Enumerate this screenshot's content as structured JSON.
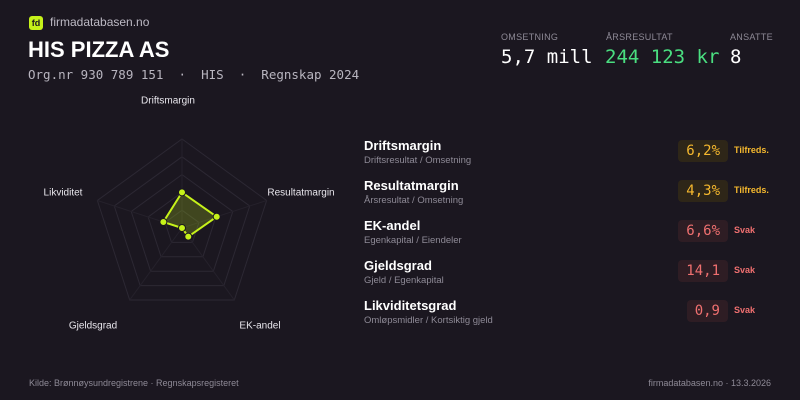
{
  "header": {
    "logo_text": "fd",
    "brand": "firmadatabasen.no",
    "company": "HIS PIZZA AS",
    "org_line": "Org.nr 930 789 151  ·  HIS  ·  Regnskap 2024"
  },
  "stats": [
    {
      "label": "OMSETNING",
      "value": "5,7 mill",
      "color": "#ffffff"
    },
    {
      "label": "ÅRSRESULTAT",
      "value": "244 123 kr",
      "color": "#4ade80"
    },
    {
      "label": "ANSATTE",
      "value": "8",
      "color": "#ffffff"
    }
  ],
  "chart_data": {
    "type": "radar",
    "axes": [
      "Driftsmargin",
      "Resultatmargin",
      "EK-andel",
      "Gjeldsgrad",
      "Likviditet"
    ],
    "values": [
      0.4,
      0.41,
      0.12,
      0,
      0.22
    ],
    "range": [
      0,
      1
    ],
    "rings": 5,
    "color": "#c6f21a"
  },
  "metrics": [
    {
      "name": "Driftsmargin",
      "formula": "Driftsresultat / Omsetning",
      "value": "6,2%",
      "status": "Tilfreds.",
      "level": "ok"
    },
    {
      "name": "Resultatmargin",
      "formula": "Årsresultat / Omsetning",
      "value": "4,3%",
      "status": "Tilfreds.",
      "level": "ok"
    },
    {
      "name": "EK-andel",
      "formula": "Egenkapital / Eiendeler",
      "value": "6,6%",
      "status": "Svak",
      "level": "weak"
    },
    {
      "name": "Gjeldsgrad",
      "formula": "Gjeld / Egenkapital",
      "value": "14,1",
      "status": "Svak",
      "level": "weak"
    },
    {
      "name": "Likviditetsgrad",
      "formula": "Omløpsmidler / Kortsiktig gjeld",
      "value": "0,9",
      "status": "Svak",
      "level": "weak"
    }
  ],
  "colors": {
    "ok": "#f5b82e",
    "ok_bg": "#2e2618",
    "weak": "#f07070",
    "weak_bg": "#2e1d24"
  },
  "footer": {
    "source": "Kilde: Brønnøysundregistrene · Regnskapsregisteret",
    "site_date": "firmadatabasen.no · 13.3.2026"
  }
}
